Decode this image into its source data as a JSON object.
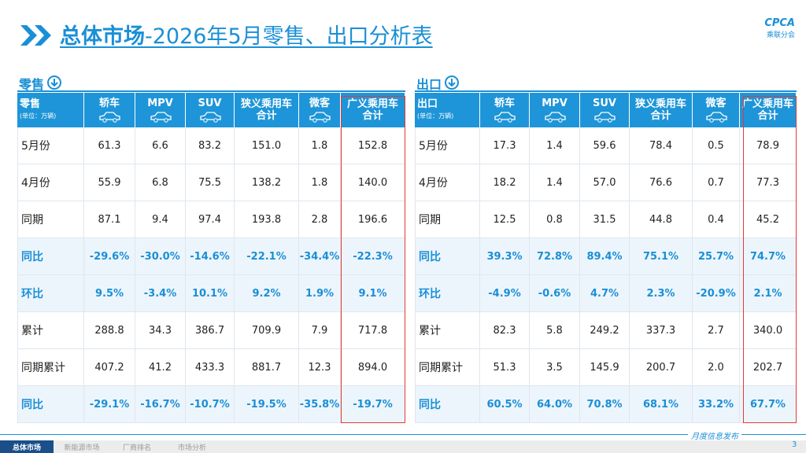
{
  "header": {
    "title_bold": "总体市场",
    "title_rest": "-2026年5月零售、出口分析表",
    "logo_text": "CPCA",
    "logo_sub": "乘联分会"
  },
  "tables": [
    {
      "section": "零售",
      "corner": "零售",
      "unit": "(单位：万辆)",
      "columns": [
        [
          "轿车"
        ],
        [
          "MPV"
        ],
        [
          "SUV"
        ],
        [
          "狭义乘用车",
          "合计"
        ],
        [
          "微客"
        ],
        [
          "广义乘用车",
          "合计"
        ]
      ],
      "rows": [
        {
          "label": "5月份",
          "emphasis": false,
          "cells": [
            "61.3",
            "6.6",
            "83.2",
            "151.0",
            "1.8",
            "152.8"
          ]
        },
        {
          "label": "4月份",
          "emphasis": false,
          "cells": [
            "55.9",
            "6.8",
            "75.5",
            "138.2",
            "1.8",
            "140.0"
          ]
        },
        {
          "label": "同期",
          "emphasis": false,
          "cells": [
            "87.1",
            "9.4",
            "97.4",
            "193.8",
            "2.8",
            "196.6"
          ]
        },
        {
          "label": "同比",
          "emphasis": true,
          "cells": [
            "-29.6%",
            "-30.0%",
            "-14.6%",
            "-22.1%",
            "-34.4%",
            "-22.3%"
          ]
        },
        {
          "label": "环比",
          "emphasis": true,
          "cells": [
            "9.5%",
            "-3.4%",
            "10.1%",
            "9.2%",
            "1.9%",
            "9.1%"
          ]
        },
        {
          "label": "累计",
          "emphasis": false,
          "cells": [
            "288.8",
            "34.3",
            "386.7",
            "709.9",
            "7.9",
            "717.8"
          ]
        },
        {
          "label": "同期累计",
          "emphasis": false,
          "cells": [
            "407.2",
            "41.2",
            "433.3",
            "881.7",
            "12.3",
            "894.0"
          ]
        },
        {
          "label": "同比",
          "emphasis": true,
          "cells": [
            "-29.1%",
            "-16.7%",
            "-10.7%",
            "-19.5%",
            "-35.8%",
            "-19.7%"
          ]
        }
      ]
    },
    {
      "section": "出口",
      "corner": "出口",
      "unit": "(单位：万辆)",
      "columns": [
        [
          "轿车"
        ],
        [
          "MPV"
        ],
        [
          "SUV"
        ],
        [
          "狭义乘用车",
          "合计"
        ],
        [
          "微客"
        ],
        [
          "广义乘用车",
          "合计"
        ]
      ],
      "rows": [
        {
          "label": "5月份",
          "emphasis": false,
          "cells": [
            "17.3",
            "1.4",
            "59.6",
            "78.4",
            "0.5",
            "78.9"
          ]
        },
        {
          "label": "4月份",
          "emphasis": false,
          "cells": [
            "18.2",
            "1.4",
            "57.0",
            "76.6",
            "0.7",
            "77.3"
          ]
        },
        {
          "label": "同期",
          "emphasis": false,
          "cells": [
            "12.5",
            "0.8",
            "31.5",
            "44.8",
            "0.4",
            "45.2"
          ]
        },
        {
          "label": "同比",
          "emphasis": true,
          "cells": [
            "39.3%",
            "72.8%",
            "89.4%",
            "75.1%",
            "25.7%",
            "74.7%"
          ]
        },
        {
          "label": "环比",
          "emphasis": true,
          "cells": [
            "-4.9%",
            "-0.6%",
            "4.7%",
            "2.3%",
            "-20.9%",
            "2.1%"
          ]
        },
        {
          "label": "累计",
          "emphasis": false,
          "cells": [
            "82.3",
            "5.8",
            "249.2",
            "337.3",
            "2.7",
            "340.0"
          ]
        },
        {
          "label": "同期累计",
          "emphasis": false,
          "cells": [
            "51.3",
            "3.5",
            "145.9",
            "200.7",
            "2.0",
            "202.7"
          ]
        },
        {
          "label": "同比",
          "emphasis": true,
          "cells": [
            "60.5%",
            "64.0%",
            "70.8%",
            "68.1%",
            "33.2%",
            "67.7%"
          ]
        }
      ]
    }
  ],
  "footer": {
    "tabs": [
      "总体市场",
      "新能源市场",
      "厂商排名",
      "市场分析"
    ],
    "publish": "月度信息发布",
    "page": "3"
  }
}
